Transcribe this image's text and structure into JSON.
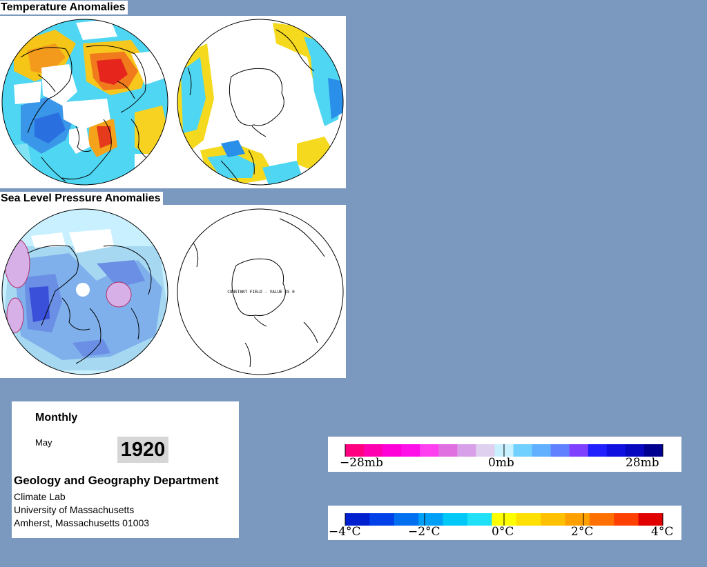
{
  "titles": {
    "temperature": "Temperature Anomalies",
    "pressure": "Sea Level Pressure Anomalies"
  },
  "maps": {
    "pressure_south_note": "CONSTANT FIELD - VALUE IS 0"
  },
  "info": {
    "period": "Monthly",
    "month": "May",
    "year": "1920",
    "department": "Geology and Geography Department",
    "lines": [
      "Climate Lab",
      "University of Massachusetts",
      "Amherst, Massachusetts 01003"
    ]
  },
  "pressure_scale": {
    "labels": [
      "−28mb",
      "0mb",
      "28mb"
    ],
    "colors": [
      "#ff0080",
      "#ff00b0",
      "#ff00d8",
      "#ff10e8",
      "#ff40f0",
      "#e070e0",
      "#d8a0e8",
      "#e0d0f0",
      "#c8f0ff",
      "#70d0ff",
      "#60b0ff",
      "#6080ff",
      "#8040ff",
      "#2020ff",
      "#1010e0",
      "#0808c0",
      "#000090"
    ]
  },
  "temperature_scale": {
    "labels": [
      "−4°C",
      "−2°C",
      "0°C",
      "2°C",
      "4°C"
    ],
    "colors": [
      "#0020d0",
      "#0040e8",
      "#0070f0",
      "#00a0f8",
      "#00c8f8",
      "#20e0f8",
      "#ffff00",
      "#ffe000",
      "#ffc000",
      "#ffa000",
      "#ff7000",
      "#ff4000",
      "#e00000"
    ]
  }
}
